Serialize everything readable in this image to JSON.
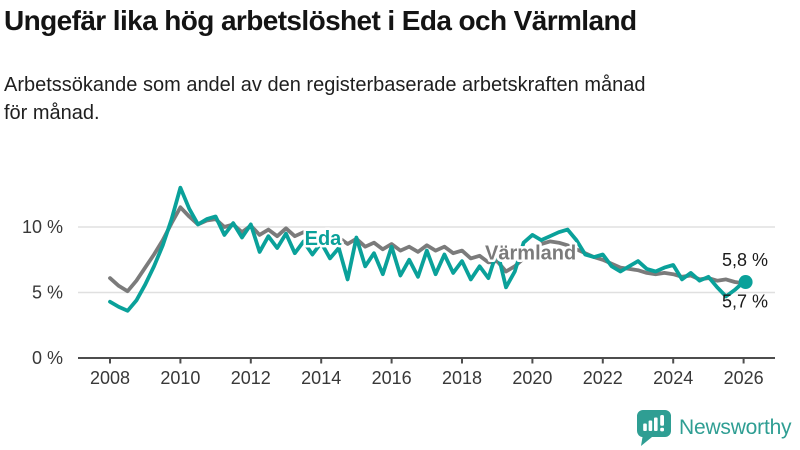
{
  "header": {
    "title": "Ungefär lika hög arbetslöshet i Eda och Värmland",
    "subtitle": "Arbetssökande som andel av den registerbaserade arbetskraften månad\nför månad."
  },
  "colors": {
    "eda": "#0aa19a",
    "varmland": "#7b7b7b",
    "grid": "#e0e0e0",
    "axis": "#4d4d4d",
    "tick_text": "#383838",
    "label_text": "#1a1a1a",
    "logo": "#2f9e93"
  },
  "chart_data": {
    "type": "line",
    "title": "Ungefär lika hög arbetslöshet i Eda och Värmland",
    "subtitle": "Arbetssökande som andel av den registerbaserade arbetskraften månad för månad.",
    "unit": "%",
    "grid": "horizontal",
    "legend_position": "inline-labels",
    "xlim": [
      2007.1,
      2026.9
    ],
    "ylim": [
      0,
      14
    ],
    "x_ticks": [
      2008,
      2010,
      2012,
      2014,
      2016,
      2018,
      2020,
      2022,
      2024,
      2026
    ],
    "y_ticks": [
      {
        "value": 0,
        "label": "0 %"
      },
      {
        "value": 5,
        "label": "5 %"
      },
      {
        "value": 10,
        "label": "10 %"
      }
    ],
    "x": [
      2008.0,
      2008.25,
      2008.5,
      2008.75,
      2009.0,
      2009.25,
      2009.5,
      2009.75,
      2010.0,
      2010.25,
      2010.5,
      2010.75,
      2011.0,
      2011.25,
      2011.5,
      2011.75,
      2012.0,
      2012.25,
      2012.5,
      2012.75,
      2013.0,
      2013.25,
      2013.5,
      2013.75,
      2014.0,
      2014.25,
      2014.5,
      2014.75,
      2015.0,
      2015.25,
      2015.5,
      2015.75,
      2016.0,
      2016.25,
      2016.5,
      2016.75,
      2017.0,
      2017.25,
      2017.5,
      2017.75,
      2018.0,
      2018.25,
      2018.5,
      2018.75,
      2019.0,
      2019.25,
      2019.5,
      2019.75,
      2020.0,
      2020.25,
      2020.5,
      2020.75,
      2021.0,
      2021.25,
      2021.5,
      2021.75,
      2022.0,
      2022.25,
      2022.5,
      2022.75,
      2023.0,
      2023.25,
      2023.5,
      2023.75,
      2024.0,
      2024.25,
      2024.5,
      2024.75,
      2025.0,
      2025.25,
      2025.5,
      2025.75,
      2026.0
    ],
    "series": [
      {
        "name": "Värmland",
        "color": "#7b7b7b",
        "end_label": "5,7 %",
        "end_label_dy": 24,
        "end_dot": false,
        "label_anchor": {
          "x": 2019.95,
          "y": 8.05
        },
        "values": [
          6.1,
          5.5,
          5.1,
          5.9,
          6.9,
          7.9,
          9.0,
          10.3,
          11.5,
          10.8,
          10.2,
          10.5,
          10.6,
          10.0,
          10.2,
          9.6,
          10.1,
          9.4,
          9.8,
          9.3,
          9.9,
          9.3,
          9.6,
          9.1,
          9.4,
          8.9,
          9.2,
          8.7,
          9.1,
          8.5,
          8.8,
          8.3,
          8.7,
          8.2,
          8.5,
          8.1,
          8.6,
          8.2,
          8.5,
          8.0,
          8.2,
          7.6,
          7.8,
          7.3,
          7.4,
          6.6,
          7.0,
          7.6,
          8.2,
          8.7,
          8.9,
          8.8,
          8.6,
          8.3,
          8.0,
          7.7,
          7.5,
          7.2,
          6.9,
          6.8,
          6.7,
          6.5,
          6.4,
          6.5,
          6.4,
          6.2,
          6.3,
          6.0,
          6.1,
          5.9,
          6.0,
          5.8,
          5.7
        ]
      },
      {
        "name": "Eda",
        "color": "#0aa19a",
        "end_label": "5,8 %",
        "end_label_dy": -16,
        "end_dot": true,
        "label_anchor": {
          "x": 2014.05,
          "y": 9.15
        },
        "values": [
          4.3,
          3.9,
          3.6,
          4.4,
          5.6,
          7.0,
          8.6,
          10.6,
          13.0,
          11.4,
          10.2,
          10.6,
          10.8,
          9.4,
          10.3,
          9.2,
          10.2,
          8.1,
          9.3,
          8.4,
          9.5,
          8.0,
          8.9,
          7.9,
          8.8,
          7.6,
          8.4,
          6.0,
          9.2,
          7.0,
          8.0,
          6.4,
          8.5,
          6.3,
          7.5,
          6.2,
          8.2,
          6.4,
          7.9,
          6.5,
          7.4,
          6.0,
          7.0,
          6.1,
          8.2,
          5.4,
          6.6,
          8.8,
          9.4,
          9.0,
          9.3,
          9.6,
          9.8,
          9.0,
          7.9,
          7.7,
          7.9,
          7.0,
          6.6,
          7.0,
          7.4,
          6.8,
          6.6,
          6.9,
          7.1,
          6.0,
          6.5,
          5.9,
          6.2,
          5.4,
          4.7,
          5.2,
          5.8
        ]
      }
    ]
  },
  "footer": {
    "brand": "Newsworthy"
  }
}
